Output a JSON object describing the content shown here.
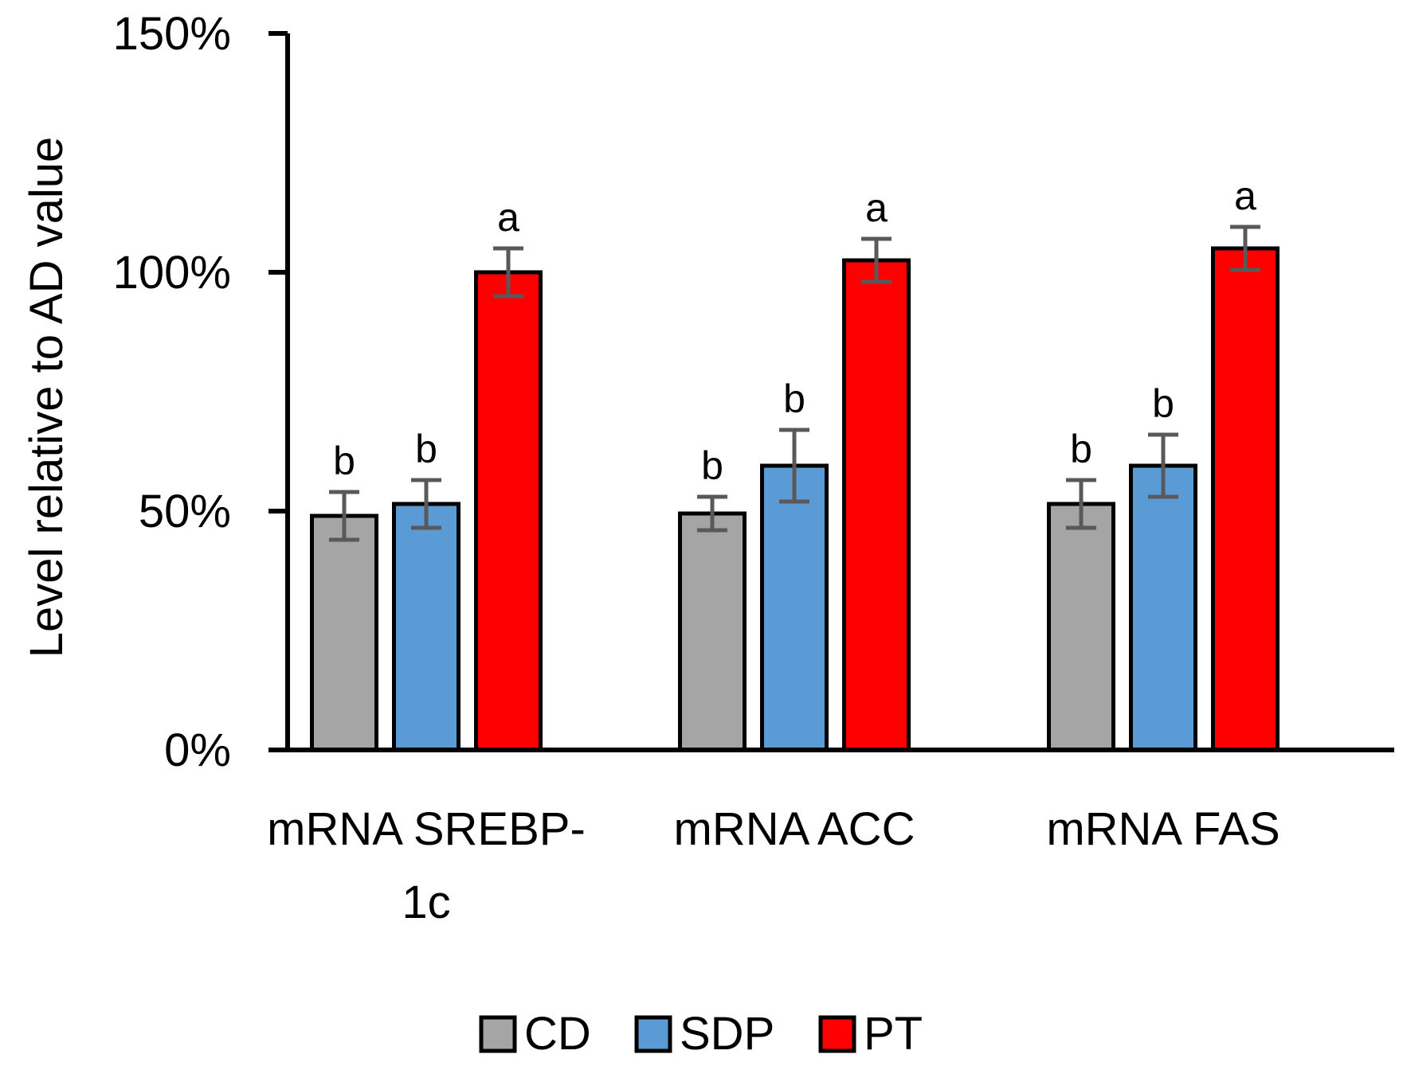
{
  "chart_data": {
    "type": "bar",
    "title": "",
    "xlabel": "",
    "ylabel": "Level relative to AD value",
    "ylim": [
      0,
      150
    ],
    "yticks": [
      {
        "value": 0,
        "label": "0%"
      },
      {
        "value": 50,
        "label": "50%"
      },
      {
        "value": 100,
        "label": "100%"
      },
      {
        "value": 150,
        "label": "150%"
      }
    ],
    "categories": [
      {
        "lines": [
          "mRNA SREBP-",
          "1c"
        ]
      },
      {
        "lines": [
          "mRNA ACC"
        ]
      },
      {
        "lines": [
          "mRNA FAS"
        ]
      }
    ],
    "series": [
      {
        "name": "CD",
        "color": "#a5a5a5",
        "values": [
          49,
          49.5,
          51.5
        ],
        "errors": [
          5,
          3.5,
          5
        ],
        "labels": [
          "b",
          "b",
          "b"
        ]
      },
      {
        "name": "SDP",
        "color": "#5b9bd5",
        "values": [
          51.5,
          59.5,
          59.5
        ],
        "errors": [
          5,
          7.5,
          6.5
        ],
        "labels": [
          "b",
          "b",
          "b"
        ]
      },
      {
        "name": "PT",
        "color": "#ff0000",
        "values": [
          100,
          102.5,
          105
        ],
        "errors": [
          5,
          4.5,
          4.5
        ],
        "labels": [
          "a",
          "a",
          "a"
        ]
      }
    ],
    "legend_position": "bottom",
    "grid": false
  }
}
